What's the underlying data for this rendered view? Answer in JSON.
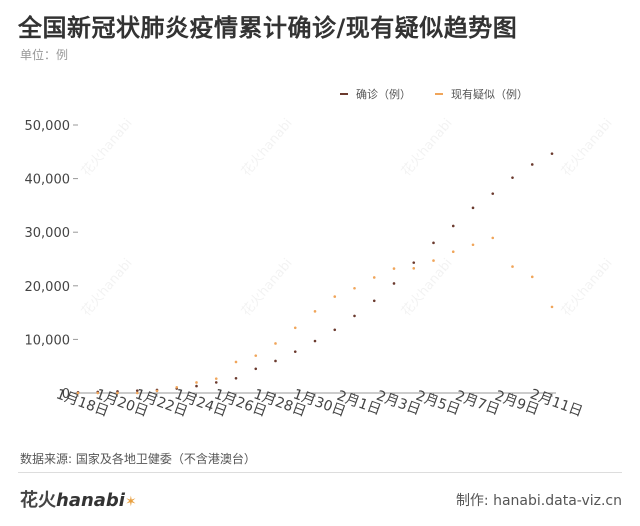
{
  "title": "全国新冠状肺炎疫情累计确诊/现有疑似趋势图",
  "unit": "单位：例",
  "source": "数据来源: 国家及各地卫健委（不含港澳台）",
  "logo": {
    "cn": "花火",
    "en": "hanabi"
  },
  "credit": "制作: hanabi.data-viz.cn",
  "watermark": "花火hanabi",
  "colors": {
    "confirmed": "#6b3a2e",
    "suspected": "#f0a55a",
    "axis": "#999999",
    "grid": "#e6e6e6"
  },
  "chart_data": {
    "type": "scatter",
    "x": [
      "1月18日",
      "1月19日",
      "1月20日",
      "1月21日",
      "1月22日",
      "1月23日",
      "1月24日",
      "1月25日",
      "1月26日",
      "1月27日",
      "1月28日",
      "1月29日",
      "1月30日",
      "1月31日",
      "2月1日",
      "2月2日",
      "2月3日",
      "2月4日",
      "2月5日",
      "2月6日",
      "2月7日",
      "2月8日",
      "2月9日",
      "2月10日",
      "2月11日"
    ],
    "xticks": [
      "1月18日",
      "1月20日",
      "1月22日",
      "1月24日",
      "1月26日",
      "1月28日",
      "1月30日",
      "2月1日",
      "2月3日",
      "2月5日",
      "2月7日",
      "2月9日",
      "2月11日"
    ],
    "yticks": [
      "0",
      "10,000",
      "20,000",
      "30,000",
      "40,000",
      "50,000"
    ],
    "ylim": [
      0,
      50000
    ],
    "legend_position": "top-right",
    "grid": false,
    "series": [
      {
        "name": "确诊（例）",
        "values": [
          121,
          198,
          291,
          440,
          571,
          830,
          1287,
          1975,
          2744,
          4515,
          5974,
          7711,
          9692,
          11791,
          14380,
          17205,
          20438,
          24324,
          28018,
          31161,
          34546,
          37198,
          40171,
          42638,
          44653
        ]
      },
      {
        "name": "现有疑似（例）",
        "values": [
          0,
          0,
          0,
          0,
          393,
          1072,
          1965,
          2684,
          5794,
          6973,
          9239,
          12167,
          15238,
          17988,
          19544,
          21558,
          23214,
          23260,
          24702,
          26359,
          27657,
          28942,
          23589,
          21675,
          16067
        ]
      }
    ]
  }
}
